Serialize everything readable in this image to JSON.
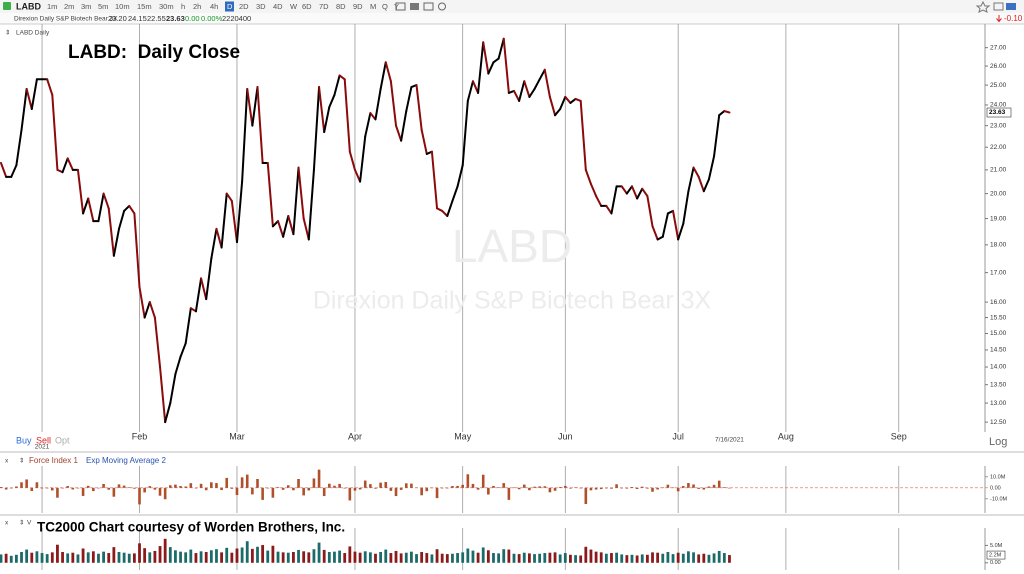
{
  "toolbar": {
    "symbol": "LABD",
    "intervals": [
      "1m",
      "2m",
      "3m",
      "5m",
      "10m",
      "15m",
      "30m",
      "h",
      "2h",
      "4h",
      "D",
      "2D",
      "3D",
      "4D",
      "W",
      "6D",
      "7D",
      "8D",
      "9D",
      "M",
      "Q",
      "Y"
    ],
    "active_interval": "D",
    "change": "-0.10"
  },
  "quote": {
    "description": "Direxion Daily S&P Biotech Bear 3X",
    "open": "23.20",
    "high": "24.15",
    "low": "22.55",
    "close": "23.63",
    "change": "0.00",
    "change_pct": "0.00%",
    "volume": "2220400"
  },
  "trade": {
    "buy": "Buy",
    "sell": "Sell",
    "opt": "Opt"
  },
  "scale_mode": "Log",
  "chart_data": [
    {
      "type": "line",
      "panel_label": "LABD Daily",
      "title": "LABD:  Daily Close",
      "log_scale": true,
      "grid": true,
      "categories": [
        null,
        null,
        null,
        null,
        null,
        null,
        null,
        null,
        "2021",
        null,
        null,
        null,
        null,
        null,
        null,
        null,
        null,
        null,
        null,
        null,
        null,
        null,
        null,
        null,
        null,
        null,
        null,
        "Feb",
        null,
        null,
        null,
        null,
        null,
        null,
        null,
        null,
        null,
        null,
        null,
        null,
        null,
        null,
        null,
        null,
        null,
        null,
        "Mar",
        null,
        null,
        null,
        null,
        null,
        null,
        null,
        null,
        null,
        null,
        null,
        null,
        null,
        null,
        null,
        null,
        null,
        null,
        null,
        null,
        null,
        null,
        "Apr",
        null,
        null,
        null,
        null,
        null,
        null,
        null,
        null,
        null,
        null,
        null,
        null,
        null,
        null,
        null,
        null,
        null,
        null,
        null,
        null,
        "May",
        null,
        null,
        null,
        null,
        null,
        null,
        null,
        null,
        null,
        null,
        null,
        null,
        null,
        null,
        null,
        null,
        null,
        null,
        null,
        "Jun",
        null,
        null,
        null,
        null,
        null,
        null,
        null,
        null,
        null,
        null,
        null,
        null,
        null,
        null,
        null,
        null,
        null,
        null,
        null,
        null,
        null,
        "Jul",
        null,
        null,
        null,
        null,
        null,
        null,
        null,
        null,
        null,
        "7/16/2021",
        null,
        null,
        null,
        null,
        null,
        null,
        null,
        null,
        null,
        null,
        "Aug",
        null,
        null,
        null,
        null,
        null,
        null,
        null,
        null,
        null,
        null,
        null,
        null,
        null,
        null,
        null,
        null,
        null,
        null,
        null,
        null,
        null,
        "Sep",
        null,
        null,
        null,
        null,
        null,
        null,
        null,
        null,
        null,
        null,
        null,
        null,
        null
      ],
      "series": [
        {
          "up_color": "#000000",
          "down_color": "#8b0a0a",
          "values": [
            21.3,
            20.7,
            20.7,
            21.2,
            22.8,
            24.8,
            23.8,
            25.3,
            25.3,
            25.3,
            24.5,
            21.0,
            20.9,
            21.5,
            21.0,
            21.0,
            19.2,
            19.8,
            18.9,
            18.9,
            20.0,
            19.4,
            17.6,
            18.6,
            19.3,
            19.5,
            19.2,
            16.5,
            15.5,
            16.0,
            15.5,
            14.0,
            12.5,
            13.0,
            13.8,
            14.3,
            14.7,
            15.8,
            15.7,
            16.8,
            16.1,
            17.5,
            18.6,
            17.9,
            20.0,
            19.7,
            18.1,
            20.5,
            24.8,
            23.0,
            24.9,
            21.3,
            21.3,
            18.7,
            18.9,
            18.3,
            19.1,
            18.4,
            21.1,
            19.0,
            18.2,
            21.0,
            24.9,
            22.7,
            23.9,
            24.5,
            25.5,
            25.3,
            21.8,
            21.0,
            20.5,
            22.5,
            23.6,
            23.3,
            24.8,
            26.2,
            25.2,
            23.0,
            22.3,
            23.7,
            24.9,
            25.0,
            22.8,
            21.7,
            21.8,
            19.4,
            19.3,
            19.1,
            19.7,
            20.3,
            21.2,
            24.2,
            25.2,
            24.6,
            27.3,
            25.6,
            26.2,
            26.4,
            27.5,
            24.6,
            24.7,
            24.2,
            25.2,
            24.4,
            24.8,
            25.3,
            25.8,
            24.4,
            23.5,
            23.8,
            24.4,
            24.1,
            24.3,
            24.2,
            21.0,
            20.4,
            19.9,
            19.5,
            19.5,
            19.2,
            20.3,
            20.3,
            20.0,
            20.3,
            19.8,
            20.2,
            19.9,
            18.7,
            18.2,
            18.3,
            19.2,
            19.3,
            18.2,
            18.8,
            20.1,
            21.1,
            20.7,
            20.1,
            20.6,
            21.6,
            23.5,
            23.7,
            23.63,
            null,
            null,
            null,
            null,
            null,
            null,
            null,
            null,
            null,
            null,
            null,
            null,
            null,
            null,
            null,
            null,
            null,
            null,
            null,
            null,
            null,
            null,
            null,
            null,
            null,
            null,
            null,
            null,
            null,
            null,
            null,
            null,
            null,
            null,
            null,
            null,
            null,
            null,
            null,
            null,
            null,
            null,
            null,
            null,
            null,
            null
          ]
        }
      ],
      "ylim": [
        12.35,
        27.6
      ],
      "yticks": [
        {
          "value": 27,
          "label": "27.00"
        },
        {
          "value": 26,
          "label": "26.00"
        },
        {
          "value": 25,
          "label": "25.00"
        },
        {
          "value": 24,
          "label": "24.00"
        },
        {
          "value": 23,
          "label": "23.00"
        },
        {
          "value": 22,
          "label": "22.00"
        },
        {
          "value": 21,
          "label": "21.00"
        },
        {
          "value": 20,
          "label": "20.00"
        },
        {
          "value": 19,
          "label": "19.00"
        },
        {
          "value": 18,
          "label": "18.00"
        },
        {
          "value": 17,
          "label": "17.00"
        },
        {
          "value": 16,
          "label": "16.00"
        },
        {
          "value": 15.5,
          "label": "15.50"
        },
        {
          "value": 15,
          "label": "15.00"
        },
        {
          "value": 14.5,
          "label": "14.50"
        },
        {
          "value": 14,
          "label": "14.00"
        },
        {
          "value": 13.5,
          "label": "13.50"
        },
        {
          "value": 13,
          "label": "13.00"
        },
        {
          "value": 12.5,
          "label": "12.50"
        }
      ]
    },
    {
      "type": "bar",
      "indicator": "Force Index 1",
      "overlay": "Exp Moving Average 2",
      "color": "#b0502a",
      "values": [
        700000,
        -1600000,
        0,
        1200000,
        5000000,
        7600000,
        -2900000,
        5000000,
        0,
        0,
        -2400000,
        -9000000,
        -300000,
        1600000,
        -1500000,
        0,
        -7400000,
        1800000,
        -3000000,
        0,
        3500000,
        -1700000,
        -8100000,
        3100000,
        2000000,
        500000,
        -800000,
        -15100000,
        -4200000,
        1500000,
        -1700000,
        -7200000,
        -10400000,
        2300000,
        2900000,
        1600000,
        1200000,
        4200000,
        -300000,
        3600000,
        -2200000,
        5000000,
        4300000,
        -2100000,
        9000000,
        -900000,
        -6600000,
        9500000,
        12000000,
        -6000000,
        8000000,
        -11000000,
        0,
        -9000000,
        600000,
        -1800000,
        2300000,
        -2200000,
        8000000,
        -6900000,
        -2400000,
        8500000,
        16500000,
        -7500000,
        3700000,
        1900000,
        3500000,
        -600000,
        -11500000,
        -2600000,
        -1500000,
        6600000,
        3300000,
        -800000,
        4700000,
        5300000,
        -2800000,
        -7500000,
        -1900000,
        4100000,
        3800000,
        300000,
        -6800000,
        -3100000,
        200000,
        -9400000,
        -300000,
        -500000,
        1600000,
        1700000,
        2700000,
        12300000,
        3500000,
        -1700000,
        11900000,
        -6100000,
        1700000,
        500000,
        4300000,
        -11000000,
        300000,
        -1300000,
        2900000,
        -2200000,
        1000000,
        1300000,
        1400000,
        -4100000,
        -2700000,
        700000,
        1700000,
        -700000,
        400000,
        -200000,
        -14700000,
        -2300000,
        -1600000,
        -1200000,
        0,
        -800000,
        3200000,
        0,
        -700000,
        700000,
        -1100000,
        1000000,
        -700000,
        -3600000,
        -1500000,
        300000,
        2800000,
        300000,
        -3200000,
        1600000,
        4300000,
        3000000,
        -1000000,
        -1600000,
        1200000,
        2700000,
        6500000,
        600000,
        -200000
      ],
      "ylim": [
        -22000000,
        18000000
      ],
      "yticks": [
        {
          "value": 10000000,
          "label": "10.0M"
        },
        {
          "value": 0,
          "label": "0.00"
        },
        {
          "value": -10000000,
          "label": "-10.0M"
        }
      ]
    },
    {
      "type": "bar",
      "indicator": "V",
      "annotation": "TC2000 Chart courtesy of Worden Brothers, Inc.",
      "up_color": "#1c6b6b",
      "down_color": "#8b1a1a",
      "values": [
        2400000,
        2600000,
        2000000,
        2300000,
        3100000,
        3800000,
        2900000,
        3300000,
        2800000,
        2500000,
        3000000,
        5200000,
        3100000,
        2700000,
        2900000,
        2400000,
        4100000,
        3000000,
        3300000,
        2600000,
        3200000,
        2800000,
        4500000,
        3100000,
        2900000,
        2600000,
        2700000,
        5600000,
        4200000,
        3000000,
        3400000,
        4800000,
        6900000,
        4500000,
        3600000,
        3200000,
        3000000,
        3800000,
        2800000,
        3300000,
        3100000,
        3600000,
        3900000,
        3000000,
        4300000,
        2900000,
        4100000,
        4400000,
        6200000,
        4000000,
        4600000,
        5100000,
        3500000,
        4900000,
        3200000,
        3000000,
        2900000,
        3100000,
        3700000,
        3300000,
        3000000,
        3900000,
        5800000,
        3700000,
        3100000,
        3200000,
        3500000,
        2800000,
        4700000,
        3200000,
        2900000,
        3300000,
        3000000,
        2600000,
        3100000,
        3800000,
        2800000,
        3400000,
        2700000,
        2900000,
        3200000,
        2500000,
        3100000,
        2800000,
        2400000,
        3900000,
        2600000,
        2500000,
        2600000,
        2800000,
        3000000,
        4100000,
        3500000,
        2900000,
        4400000,
        3600000,
        2800000,
        2700000,
        3900000,
        3800000,
        2600000,
        2500000,
        2900000,
        2700000,
        2500000,
        2600000,
        2800000,
        2900000,
        3000000,
        2400000,
        2800000,
        2300000,
        2200000,
        2100000,
        4600000,
        3800000,
        3200000,
        3000000,
        2600000,
        2800000,
        2900000,
        2400000,
        2200000,
        2300000,
        2100000,
        2400000,
        2300000,
        3000000,
        2900000,
        2600000,
        3100000,
        2500000,
        2900000,
        2600000,
        3300000,
        3000000,
        2400000,
        2600000,
        2300000,
        2700000,
        3400000,
        2800000,
        2220400
      ],
      "last_value_label": "2.2M",
      "ylim": [
        -1500000,
        10000000
      ],
      "yticks": [
        {
          "value": 5000000,
          "label": "5.0M"
        },
        {
          "value": 0,
          "label": "0.00"
        }
      ]
    }
  ]
}
